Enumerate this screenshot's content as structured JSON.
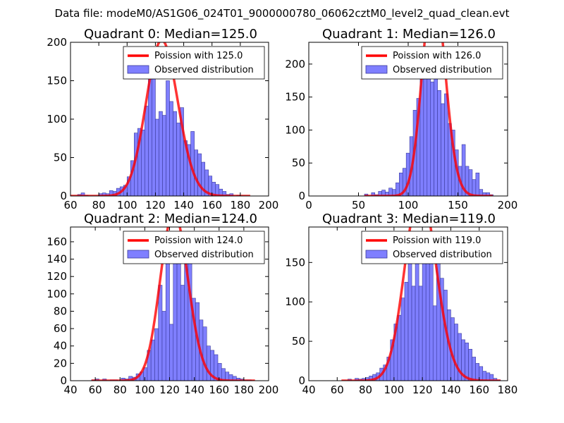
{
  "figure_title": "Data file: modeM0/AS1G06_024T01_9000000780_06062cztM0_level2_quad_clean.evt",
  "colors": {
    "poisson": "#ff0000",
    "bars": "#7f7fff",
    "bar_edge": "#3a3a9a"
  },
  "chart_data": [
    {
      "type": "bar",
      "title": "Quadrant 0: Median=125.0",
      "median": 125.0,
      "xlim": [
        60,
        200
      ],
      "ylim": [
        0,
        200
      ],
      "xticks": [
        60,
        80,
        100,
        120,
        140,
        160,
        180,
        200
      ],
      "yticks": [
        0,
        50,
        100,
        150,
        200
      ],
      "bin_width": 2.5,
      "bin_starts": [
        60,
        62.5,
        65,
        67.5,
        70,
        72.5,
        75,
        77.5,
        80,
        82.5,
        85,
        87.5,
        90,
        92.5,
        95,
        97.5,
        100,
        102.5,
        105,
        107.5,
        110,
        112.5,
        115,
        117.5,
        120,
        122.5,
        125,
        127.5,
        130,
        132.5,
        135,
        137.5,
        140,
        142.5,
        145,
        147.5,
        150,
        152.5,
        155,
        157.5,
        160,
        162.5,
        165,
        167.5,
        170,
        172.5,
        175,
        177.5,
        180,
        182.5,
        185
      ],
      "counts": [
        0,
        0,
        2,
        4,
        1,
        0,
        0,
        0,
        3,
        4,
        3,
        7,
        6,
        10,
        12,
        14,
        25,
        46,
        82,
        88,
        86,
        117,
        172,
        188,
        100,
        110,
        105,
        150,
        123,
        110,
        95,
        115,
        72,
        67,
        84,
        60,
        55,
        44,
        34,
        26,
        18,
        15,
        9,
        6,
        2,
        3,
        0,
        1,
        0,
        0,
        0
      ],
      "legend": [
        "Poission with 125.0",
        "Observed distribution"
      ]
    },
    {
      "type": "bar",
      "title": "Quadrant 1: Median=126.0",
      "median": 126.0,
      "xlim": [
        0,
        200
      ],
      "ylim": [
        0,
        233
      ],
      "xticks": [
        0,
        50,
        100,
        150,
        200
      ],
      "yticks": [
        0,
        50,
        100,
        150,
        200
      ],
      "bin_width": 3.5,
      "bin_starts": [
        56,
        59.5,
        63,
        66.5,
        70,
        73.5,
        77,
        80.5,
        84,
        87.5,
        91,
        94.5,
        98,
        101.5,
        105,
        108.5,
        112,
        115.5,
        119,
        122.5,
        126,
        129.5,
        133,
        136.5,
        140,
        143.5,
        147,
        150.5,
        154,
        157.5,
        161,
        164.5,
        168,
        171.5,
        175,
        178.5,
        182
      ],
      "counts": [
        3,
        0,
        5,
        2,
        7,
        9,
        6,
        12,
        10,
        20,
        35,
        42,
        65,
        90,
        130,
        148,
        200,
        188,
        215,
        173,
        220,
        160,
        140,
        155,
        110,
        100,
        70,
        45,
        78,
        45,
        40,
        25,
        35,
        10,
        5,
        5,
        2
      ],
      "legend": [
        "Poission with 126.0",
        "Observed distribution"
      ]
    },
    {
      "type": "bar",
      "title": "Quadrant 2: Median=124.0",
      "median": 124.0,
      "xlim": [
        40,
        200
      ],
      "ylim": [
        0,
        177
      ],
      "xticks": [
        40,
        60,
        80,
        100,
        120,
        140,
        160,
        180,
        200
      ],
      "yticks": [
        0,
        20,
        40,
        60,
        80,
        100,
        120,
        140,
        160
      ],
      "bin_width": 3,
      "bin_starts": [
        57,
        60,
        63,
        66,
        69,
        72,
        75,
        78,
        81,
        84,
        87,
        90,
        93,
        96,
        99,
        102,
        105,
        108,
        111,
        114,
        117,
        120,
        123,
        126,
        129,
        132,
        135,
        138,
        141,
        144,
        147,
        150,
        153,
        156,
        159,
        162,
        165,
        168,
        171,
        174,
        177,
        180,
        183,
        186
      ],
      "counts": [
        1,
        2,
        0,
        2,
        0,
        1,
        1,
        0,
        3,
        2,
        5,
        4,
        8,
        10,
        15,
        35,
        47,
        60,
        110,
        80,
        155,
        65,
        135,
        170,
        110,
        160,
        140,
        95,
        90,
        70,
        62,
        40,
        35,
        30,
        20,
        14,
        10,
        7,
        5,
        3,
        2,
        1,
        1,
        0
      ],
      "legend": [
        "Poission with 124.0",
        "Observed distribution"
      ]
    },
    {
      "type": "bar",
      "title": "Quadrant 3: Median=119.0",
      "median": 119.0,
      "xlim": [
        40,
        180
      ],
      "ylim": [
        0,
        195
      ],
      "xticks": [
        40,
        60,
        80,
        100,
        120,
        140,
        160,
        180
      ],
      "yticks": [
        0,
        50,
        100,
        150
      ],
      "bin_width": 2.5,
      "bin_starts": [
        62.5,
        65,
        67.5,
        70,
        72.5,
        75,
        77.5,
        80,
        82.5,
        85,
        87.5,
        90,
        92.5,
        95,
        97.5,
        100,
        102.5,
        105,
        107.5,
        110,
        112.5,
        115,
        117.5,
        120,
        122.5,
        125,
        127.5,
        130,
        132.5,
        135,
        137.5,
        140,
        142.5,
        145,
        147.5,
        150,
        152.5,
        155,
        157.5,
        160,
        162.5,
        165,
        167.5,
        170,
        172.5
      ],
      "counts": [
        0,
        0,
        2,
        0,
        3,
        2,
        3,
        4,
        6,
        8,
        10,
        16,
        20,
        30,
        52,
        72,
        83,
        105,
        125,
        158,
        120,
        170,
        120,
        155,
        175,
        160,
        95,
        165,
        130,
        115,
        90,
        80,
        72,
        60,
        52,
        48,
        40,
        30,
        22,
        18,
        12,
        10,
        8,
        3,
        1
      ],
      "legend": [
        "Poission with 119.0",
        "Observed distribution"
      ]
    }
  ]
}
